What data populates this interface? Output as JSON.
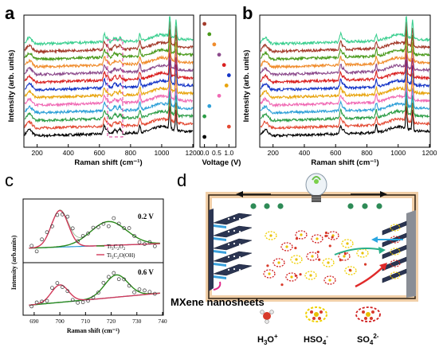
{
  "panel_labels": {
    "a": "a",
    "b": "b",
    "c": "c",
    "d": "d"
  },
  "colors": {
    "spectra": [
      "#000000",
      "#e34a33",
      "#2c9d46",
      "#2fa0d8",
      "#f06ab4",
      "#e8a40d",
      "#1535c7",
      "#d92020",
      "#8c4b8c",
      "#f08c2c",
      "#4a9a1c",
      "#a33a2a",
      "#3ccf90"
    ],
    "dashed_box": "#e05aa8",
    "fit_green": "#2c8a1c",
    "fit_red": "#d23a5a",
    "fit_blue": "#2b9ad6",
    "frame_top": "#f1cfa8",
    "electrode_dark": "#2b3552",
    "electrode_blue": "#3aa0dc",
    "dot_green": "#2e8b57"
  },
  "chart_data": [
    {
      "panel": "a",
      "type": "line",
      "title": "",
      "xlabel": "Raman shift (cm⁻¹)",
      "ylabel": "Intensity (arb. units)",
      "xlim": [
        120,
        1200
      ],
      "xticks": [
        "200",
        "400",
        "600",
        "800",
        "1000",
        "1200"
      ],
      "series_count": 13,
      "peaks_cm1": [
        155,
        630,
        645,
        700,
        730,
        860,
        1050,
        1090
      ]
    },
    {
      "panel": "a-inset",
      "type": "scatter",
      "xlabel": "Voltage (V)",
      "xticks": [
        "0.0",
        "0.5",
        "1.0"
      ],
      "xlim": [
        -0.15,
        1.25
      ],
      "x": [
        0.0,
        1.0,
        0.0,
        0.2,
        0.6,
        0.9,
        1.0,
        0.8,
        0.6,
        0.4,
        0.2,
        0.0
      ],
      "y_index": [
        0,
        1,
        2,
        3,
        4,
        5,
        6,
        7,
        8,
        9,
        10,
        11
      ]
    },
    {
      "panel": "b",
      "type": "line",
      "xlabel": "Raman shift (cm⁻¹)",
      "ylabel": "Intensity (arb. units)",
      "xlim": [
        120,
        1200
      ],
      "xticks": [
        "200",
        "400",
        "600",
        "800",
        "1000",
        "1200"
      ],
      "series_count": 13,
      "peaks_cm1": [
        155,
        630,
        860,
        1050,
        1090
      ]
    },
    {
      "panel": "c",
      "type": "line",
      "xlabel": "Raman shift (cm⁻¹)",
      "ylabel": "Intensity (arb.units)",
      "xlim": [
        686,
        740
      ],
      "xticks": [
        "690",
        "700",
        "710",
        "720",
        "730",
        "740"
      ],
      "subplots": [
        {
          "label": "0.2 V",
          "peak_red": 700,
          "peak_green": 719
        },
        {
          "label": "0.6 V",
          "peak_red": 700,
          "peak_green": 722
        }
      ],
      "legend": {
        "placement": "lower-right",
        "entries": [
          {
            "main": "Ti",
            "s1": "3",
            "mid": "C",
            "s2": "2",
            "rest": "O",
            "s3": "2",
            "tail": ""
          },
          {
            "main": "Ti",
            "s1": "3",
            "mid": "C",
            "s2": "2",
            "rest": "O(OH)",
            "s3": "",
            "tail": ""
          }
        ]
      }
    }
  ],
  "diagram": {
    "mxene_label": "MXene nanosheets",
    "legend": [
      {
        "main": "H",
        "sub": "3",
        "rest": "O",
        "sup": "+"
      },
      {
        "main": "HSO",
        "sub": "4",
        "rest": "",
        "sup": "-"
      },
      {
        "main": "SO",
        "sub": "4",
        "rest": "",
        "sup": "2-"
      }
    ]
  }
}
